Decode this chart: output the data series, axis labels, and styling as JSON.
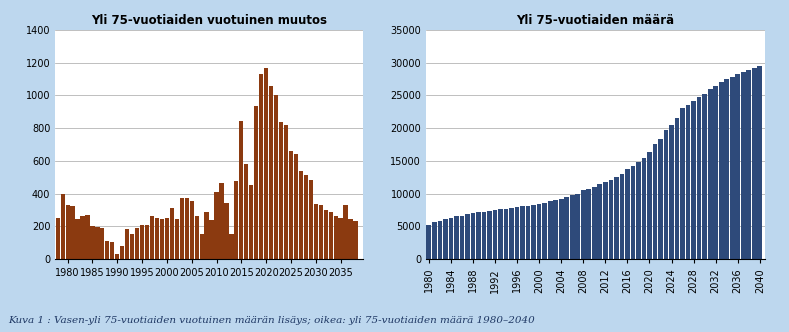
{
  "left_title": "Yli 75-vuotiaiden vuotuinen muutos",
  "right_title": "Yli 75-vuotiaiden määrä",
  "caption": "Kuva 1 : Vasen-yli 75-vuotiaiden vuotuinen määrän lisäys; oikea: yli 75-vuotiaiden määrä 1980–2040",
  "left_years": [
    1978,
    1979,
    1980,
    1981,
    1982,
    1983,
    1984,
    1985,
    1986,
    1987,
    1988,
    1989,
    1990,
    1991,
    1992,
    1993,
    1994,
    1995,
    1996,
    1997,
    1998,
    1999,
    2000,
    2001,
    2002,
    2003,
    2004,
    2005,
    2006,
    2007,
    2008,
    2009,
    2010,
    2011,
    2012,
    2013,
    2014,
    2015,
    2016,
    2017,
    2018,
    2019,
    2020,
    2021,
    2022,
    2023,
    2024,
    2025,
    2026,
    2027,
    2028,
    2029,
    2030,
    2031,
    2032,
    2033,
    2034,
    2035,
    2036,
    2037,
    2038
  ],
  "left_values": [
    250,
    400,
    330,
    325,
    245,
    260,
    270,
    200,
    195,
    190,
    110,
    105,
    30,
    80,
    185,
    155,
    190,
    210,
    205,
    265,
    250,
    245,
    250,
    310,
    245,
    370,
    375,
    355,
    260,
    155,
    290,
    240,
    410,
    465,
    345,
    155,
    475,
    845,
    580,
    450,
    935,
    1130,
    1170,
    1055,
    1000,
    835,
    820,
    660,
    640,
    540,
    515,
    480,
    335,
    330,
    300,
    290,
    265,
    250,
    330,
    245,
    230
  ],
  "right_years": [
    1980,
    1981,
    1982,
    1983,
    1984,
    1985,
    1986,
    1987,
    1988,
    1989,
    1990,
    1991,
    1992,
    1993,
    1994,
    1995,
    1996,
    1997,
    1998,
    1999,
    2000,
    2001,
    2002,
    2003,
    2004,
    2005,
    2006,
    2007,
    2008,
    2009,
    2010,
    2011,
    2012,
    2013,
    2014,
    2015,
    2016,
    2017,
    2018,
    2019,
    2020,
    2021,
    2022,
    2023,
    2024,
    2025,
    2026,
    2027,
    2028,
    2029,
    2030,
    2031,
    2032,
    2033,
    2034,
    2035,
    2036,
    2037,
    2038,
    2039,
    2040
  ],
  "right_values": [
    5200,
    5600,
    5800,
    6100,
    6300,
    6500,
    6600,
    6800,
    7000,
    7100,
    7200,
    7300,
    7500,
    7600,
    7700,
    7800,
    7900,
    8050,
    8150,
    8250,
    8400,
    8600,
    8800,
    9000,
    9200,
    9500,
    9750,
    10000,
    10500,
    10700,
    11000,
    11400,
    11700,
    12100,
    12500,
    13000,
    13700,
    14200,
    14800,
    15500,
    16400,
    17500,
    18300,
    19700,
    20500,
    21500,
    23000,
    23500,
    24200,
    24700,
    25200,
    26000,
    26500,
    27000,
    27500,
    27800,
    28200,
    28500,
    28800,
    29100,
    29500
  ],
  "left_bar_color": "#8B3A10",
  "right_bar_color": "#2E4A7A",
  "bg_color": "#BDD7EE",
  "plot_bg_color": "#FFFFFF",
  "left_ylim": [
    0,
    1400
  ],
  "left_yticks": [
    0,
    200,
    400,
    600,
    800,
    1000,
    1200,
    1400
  ],
  "left_xticks": [
    1980,
    1985,
    1990,
    1995,
    2000,
    2005,
    2010,
    2015,
    2020,
    2025,
    2030,
    2035
  ],
  "right_ylim": [
    0,
    35000
  ],
  "right_yticks": [
    0,
    5000,
    10000,
    15000,
    20000,
    25000,
    30000,
    35000
  ],
  "right_xticks": [
    1980,
    1984,
    1988,
    1992,
    1996,
    2000,
    2004,
    2008,
    2012,
    2016,
    2020,
    2024,
    2028,
    2032,
    2036,
    2040
  ]
}
